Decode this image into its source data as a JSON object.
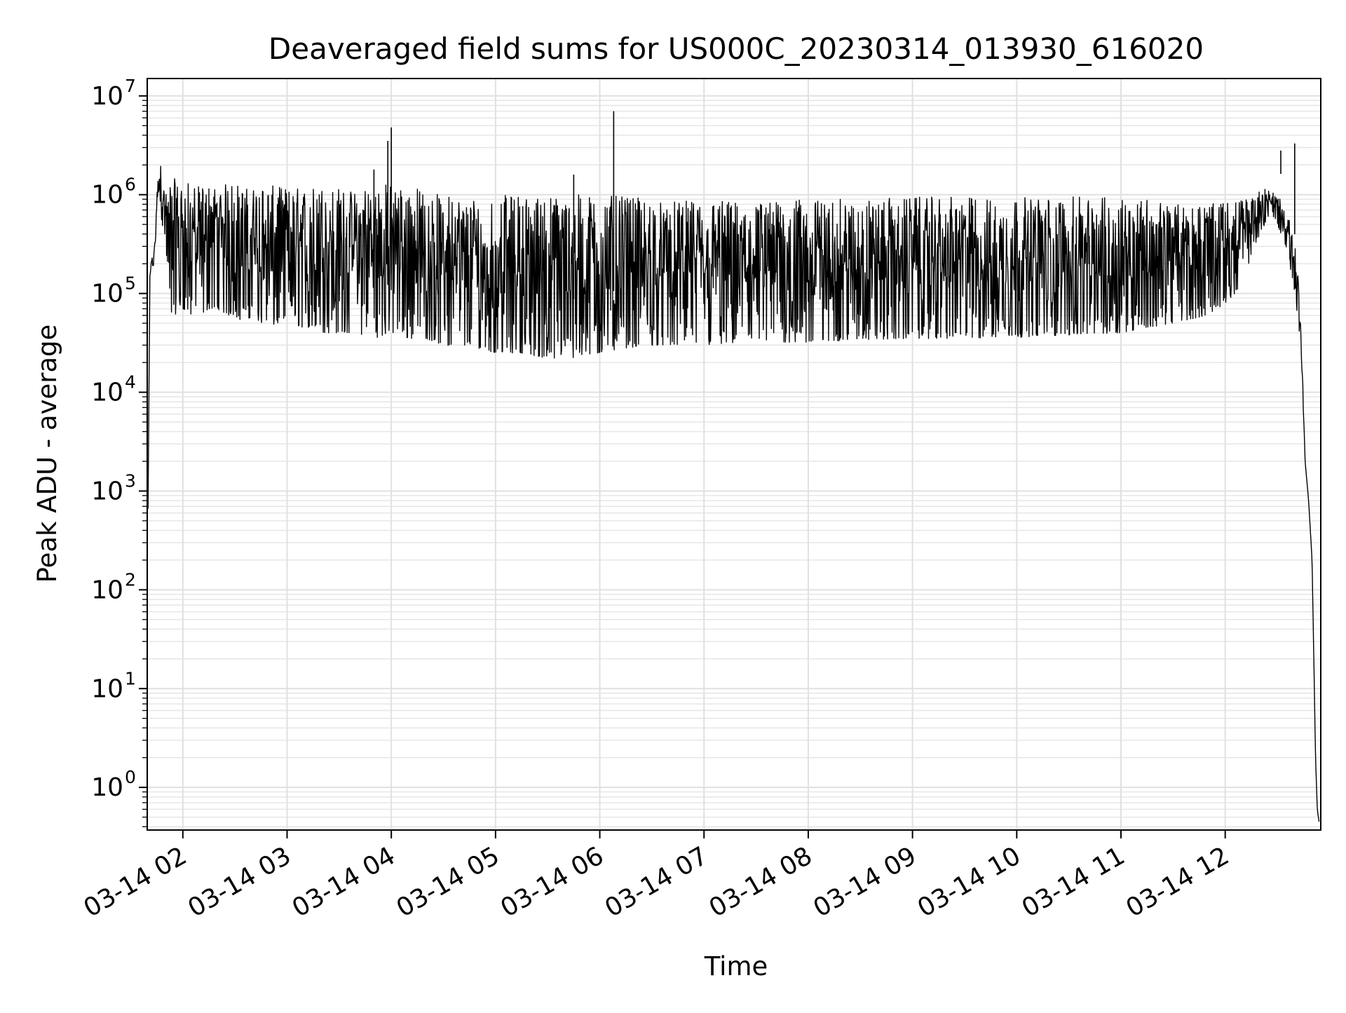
{
  "chart_data": {
    "type": "line",
    "title": "Deaveraged field sums for US000C_20230314_013930_616020",
    "xlabel": "Time",
    "ylabel": "Peak ADU - average",
    "x_type": "datetime",
    "xlim": [
      "2023-03-14 01:39:30",
      "2023-03-14 12:55:00"
    ],
    "ylim": [
      0.37,
      15000000
    ],
    "yscale": "log",
    "grid": true,
    "legend": "none",
    "line_color": "#000000",
    "x_ticks": [
      {
        "value": "2023-03-14 02:00",
        "label": "03-14 02"
      },
      {
        "value": "2023-03-14 03:00",
        "label": "03-14 03"
      },
      {
        "value": "2023-03-14 04:00",
        "label": "03-14 04"
      },
      {
        "value": "2023-03-14 05:00",
        "label": "03-14 05"
      },
      {
        "value": "2023-03-14 06:00",
        "label": "03-14 06"
      },
      {
        "value": "2023-03-14 07:00",
        "label": "03-14 07"
      },
      {
        "value": "2023-03-14 08:00",
        "label": "03-14 08"
      },
      {
        "value": "2023-03-14 09:00",
        "label": "03-14 09"
      },
      {
        "value": "2023-03-14 10:00",
        "label": "03-14 10"
      },
      {
        "value": "2023-03-14 11:00",
        "label": "03-14 11"
      },
      {
        "value": "2023-03-14 12:00",
        "label": "03-14 12"
      }
    ],
    "y_ticks": [
      {
        "value": 1,
        "base": "10",
        "exp": "0"
      },
      {
        "value": 10,
        "base": "10",
        "exp": "1"
      },
      {
        "value": 100,
        "base": "10",
        "exp": "2"
      },
      {
        "value": 1000,
        "base": "10",
        "exp": "3"
      },
      {
        "value": 10000,
        "base": "10",
        "exp": "4"
      },
      {
        "value": 100000,
        "base": "10",
        "exp": "5"
      },
      {
        "value": 1000000,
        "base": "10",
        "exp": "6"
      },
      {
        "value": 10000000,
        "base": "10",
        "exp": "7"
      }
    ],
    "series": [
      {
        "x": [
          "2023-03-14 01:40",
          "2023-03-14 01:41",
          "2023-03-14 01:42",
          "2023-03-14 01:43",
          "2023-03-14 01:44",
          "2023-03-14 01:45",
          "2023-03-14 01:46",
          "2023-03-14 01:47",
          "2023-03-14 01:48",
          "2023-03-14 01:49",
          "2023-03-14 01:50",
          "2023-03-14 01:51",
          "2023-03-14 01:52",
          "2023-03-14 01:53",
          "2023-03-14 01:54",
          "2023-03-14 01:55",
          "2023-03-14 01:56",
          "2023-03-14 01:57",
          "2023-03-14 01:58",
          "2023-03-14 01:59",
          "2023-03-14 02:00",
          "2023-03-14 02:05",
          "2023-03-14 02:10",
          "2023-03-14 02:15",
          "2023-03-14 02:20",
          "2023-03-14 02:25",
          "2023-03-14 02:30",
          "2023-03-14 02:35",
          "2023-03-14 02:40",
          "2023-03-14 02:45",
          "2023-03-14 02:50",
          "2023-03-14 02:55",
          "2023-03-14 03:00",
          "2023-03-14 03:10",
          "2023-03-14 03:20",
          "2023-03-14 03:30",
          "2023-03-14 03:40",
          "2023-03-14 03:50",
          "2023-03-14 04:00",
          "2023-03-14 04:10",
          "2023-03-14 04:20",
          "2023-03-14 04:30",
          "2023-03-14 04:40",
          "2023-03-14 04:50",
          "2023-03-14 05:00",
          "2023-03-14 05:15",
          "2023-03-14 05:30",
          "2023-03-14 05:45",
          "2023-03-14 06:00",
          "2023-03-14 06:15",
          "2023-03-14 06:30",
          "2023-03-14 06:45",
          "2023-03-14 07:00",
          "2023-03-14 07:30",
          "2023-03-14 08:00",
          "2023-03-14 08:30",
          "2023-03-14 09:00",
          "2023-03-14 09:30",
          "2023-03-14 10:00",
          "2023-03-14 10:30",
          "2023-03-14 11:00",
          "2023-03-14 11:15",
          "2023-03-14 11:30",
          "2023-03-14 11:40",
          "2023-03-14 11:50",
          "2023-03-14 12:00",
          "2023-03-14 12:10",
          "2023-03-14 12:15",
          "2023-03-14 12:20",
          "2023-03-14 12:25",
          "2023-03-14 12:30",
          "2023-03-14 12:35",
          "2023-03-14 12:40",
          "2023-03-14 12:42",
          "2023-03-14 12:44",
          "2023-03-14 12:46",
          "2023-03-14 12:48",
          "2023-03-14 12:50",
          "2023-03-14 12:51",
          "2023-03-14 12:52",
          "2023-03-14 12:53",
          "2023-03-14 12:54"
        ],
        "y_upper": [
          700,
          150000,
          250000,
          200000,
          400000,
          1000000,
          1700000,
          2200000,
          1500000,
          1200000,
          1000000,
          1100000,
          1300000,
          1500000,
          1200000,
          1400000,
          1600000,
          1300000,
          1500000,
          1400000,
          1400000,
          1300000,
          1200000,
          1300000,
          1200000,
          1300000,
          1400000,
          1200000,
          1200000,
          1300000,
          1250000,
          1200000,
          1200000,
          1200000,
          1300000,
          1200000,
          1100000,
          1400000,
          1300000,
          1300000,
          1100000,
          1000000,
          1000000,
          1000000,
          1000000,
          1000000,
          1000000,
          1000000,
          1000000,
          950000,
          900000,
          850000,
          900000,
          850000,
          900000,
          900000,
          950000,
          950000,
          950000,
          950000,
          950000,
          950000,
          800000,
          800000,
          800000,
          850000,
          900000,
          1000000,
          1100000,
          1200000,
          1000000,
          700000,
          400000,
          150000,
          30000,
          2000,
          800,
          200,
          20,
          2,
          0.6,
          0.45
        ],
        "y_lower": [
          600,
          120000,
          200000,
          180000,
          300000,
          500000,
          700000,
          800000,
          500000,
          400000,
          300000,
          150000,
          80000,
          60000,
          60000,
          70000,
          60000,
          60000,
          70000,
          60000,
          70000,
          60000,
          60000,
          70000,
          70000,
          60000,
          60000,
          50000,
          60000,
          50000,
          45000,
          50000,
          50000,
          45000,
          40000,
          40000,
          40000,
          35000,
          40000,
          35000,
          35000,
          30000,
          28000,
          28000,
          25000,
          25000,
          22000,
          22000,
          25000,
          28000,
          30000,
          30000,
          30000,
          32000,
          32000,
          34000,
          35000,
          35000,
          36000,
          38000,
          40000,
          45000,
          50000,
          55000,
          60000,
          80000,
          120000,
          250000,
          400000,
          600000,
          500000,
          300000,
          100000,
          50000,
          20000,
          2000,
          800,
          200,
          20,
          2,
          0.6,
          0.45
        ],
        "spikes": [
          {
            "x": "2023-03-14 03:58",
            "y": 3500000
          },
          {
            "x": "2023-03-14 04:00",
            "y": 4800000
          },
          {
            "x": "2023-03-14 03:50",
            "y": 1800000
          },
          {
            "x": "2023-03-14 05:45",
            "y": 1600000
          },
          {
            "x": "2023-03-14 06:08",
            "y": 7000000
          },
          {
            "x": "2023-03-14 12:32",
            "y": 2800000
          },
          {
            "x": "2023-03-14 12:40",
            "y": 3300000
          }
        ]
      }
    ]
  }
}
